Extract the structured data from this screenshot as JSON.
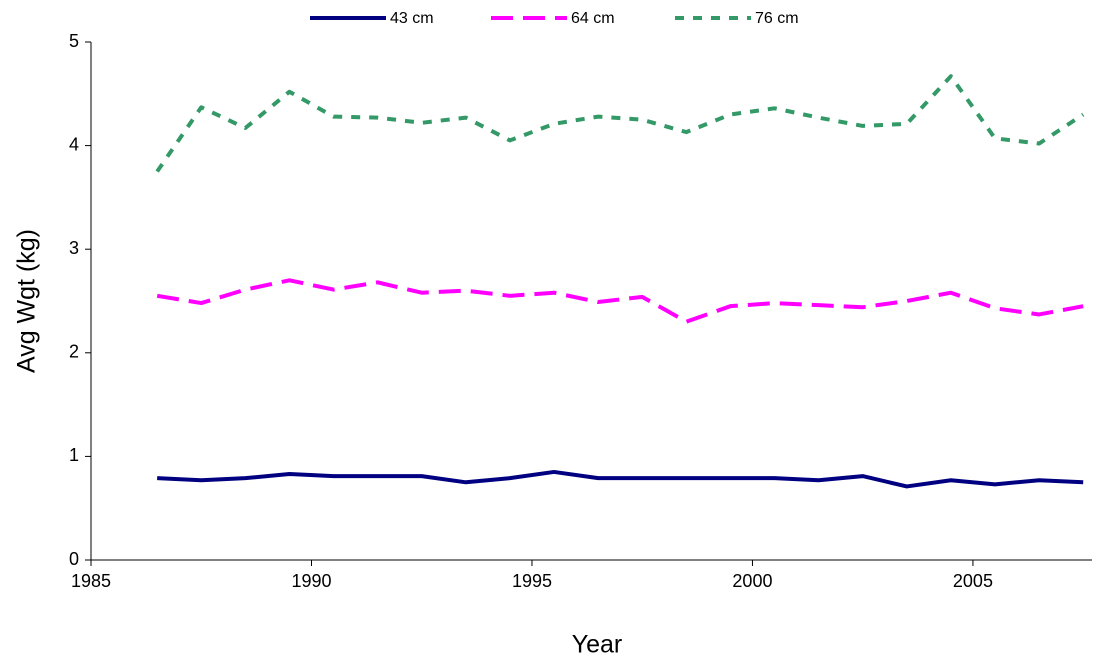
{
  "chart_data": {
    "type": "line",
    "x_label": "Year",
    "y_label": "Avg Wgt (kg)",
    "x": [
      1986.5,
      1987.5,
      1988.5,
      1989.5,
      1990.5,
      1991.5,
      1992.5,
      1993.5,
      1994.5,
      1995.5,
      1996.5,
      1997.5,
      1998.5,
      1999.5,
      2000.5,
      2001.5,
      2002.5,
      2003.5,
      2004.5,
      2005.5,
      2006.5,
      2007.5
    ],
    "series": [
      {
        "name": "43 cm",
        "color": "#000080",
        "line_style": "solid",
        "values": [
          0.79,
          0.77,
          0.79,
          0.83,
          0.81,
          0.81,
          0.81,
          0.75,
          0.79,
          0.85,
          0.79,
          0.79,
          0.79,
          0.79,
          0.79,
          0.77,
          0.81,
          0.71,
          0.77,
          0.73,
          0.77,
          0.75
        ]
      },
      {
        "name": "64 cm",
        "color": "#ff00ff",
        "line_style": "dashed",
        "values": [
          2.55,
          2.48,
          2.61,
          2.7,
          2.61,
          2.68,
          2.58,
          2.6,
          2.55,
          2.58,
          2.49,
          2.54,
          2.3,
          2.45,
          2.48,
          2.46,
          2.44,
          2.5,
          2.58,
          2.43,
          2.37,
          2.45
        ]
      },
      {
        "name": "76 cm",
        "color": "#339966",
        "line_style": "dotted",
        "values": [
          3.75,
          4.37,
          4.17,
          4.52,
          4.28,
          4.27,
          4.22,
          4.27,
          4.05,
          4.21,
          4.28,
          4.25,
          4.13,
          4.3,
          4.36,
          4.27,
          4.19,
          4.21,
          4.67,
          4.07,
          4.02,
          4.3
        ]
      }
    ],
    "xlim": [
      1985,
      2007.7
    ],
    "xticks": [
      1985,
      1990,
      1995,
      2000,
      2005
    ],
    "ylim": [
      0,
      5
    ],
    "yticks": [
      0,
      1,
      2,
      3,
      4,
      5
    ],
    "grid": false,
    "legend": "top"
  }
}
